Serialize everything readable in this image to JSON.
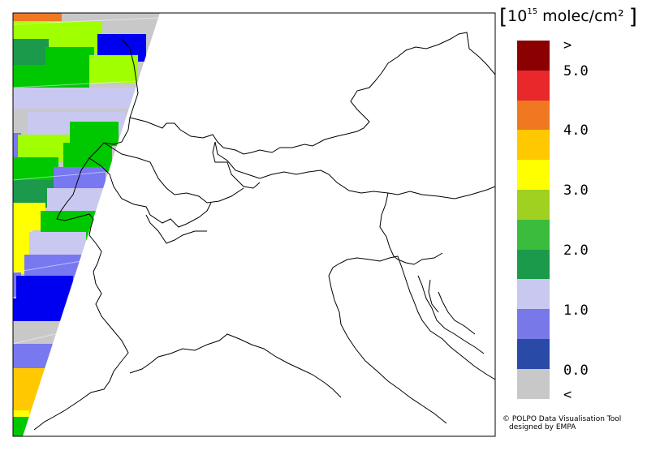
{
  "units": {
    "bracket_open": "[",
    "prefix": "10",
    "exponent": "15",
    "suffix": " molec/cm²",
    "bracket_close": "]"
  },
  "colorbar": {
    "colors": [
      "#8b0000",
      "#e8282a",
      "#f07820",
      "#ffc800",
      "#ffff00",
      "#a0d020",
      "#3cbc3c",
      "#1a9a4a",
      "#c8c8f0",
      "#7878e8",
      "#2a4aa8",
      "#c8c8c8"
    ],
    "labels": [
      ">",
      "5.0",
      "4.0",
      "3.0",
      "2.0",
      "1.0",
      "0.0",
      "<"
    ]
  },
  "credit": {
    "line1": "© POLPO Data Visualisation Tool",
    "line2": "designed by EMPA"
  }
}
